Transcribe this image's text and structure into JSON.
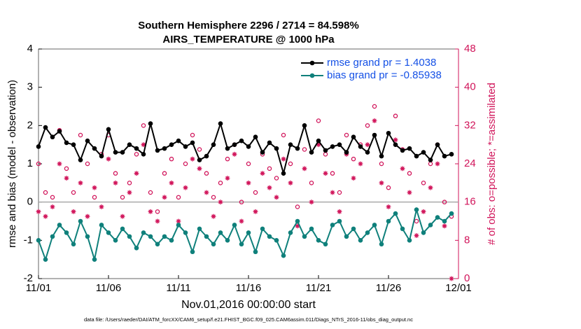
{
  "chart_data": {
    "type": "line",
    "title": "Southern Hemisphere 2296 / 2714 = 84.598%",
    "subtitle": "AIRS_TEMPERATURE @ 1000 hPa",
    "x_label": "Nov.01,2016 00:00:00 start",
    "y_label": "rmse and bias (model - observation)",
    "y2_label": "# of obs: o=possible; *=assimilated",
    "footnote": "data file: /Users/raeder/DAI/ATM_forcXX/CAM6_setup/f.e21.FHIST_BGC.f09_025.CAM6assim.011/Diags_NTrS_2016-11/obs_diag_output.nc",
    "x": [
      0,
      0.5,
      1,
      1.5,
      2,
      2.5,
      3,
      3.5,
      4,
      4.5,
      5,
      5.5,
      6,
      6.5,
      7,
      7.5,
      8,
      8.5,
      9,
      9.5,
      10,
      10.5,
      11,
      11.5,
      12,
      12.5,
      13,
      13.5,
      14,
      14.5,
      15,
      15.5,
      16,
      16.5,
      17,
      17.5,
      18,
      18.5,
      19,
      19.5,
      20,
      20.5,
      21,
      21.5,
      22,
      22.5,
      23,
      23.5,
      24,
      24.5,
      25,
      25.5,
      26,
      26.5,
      27,
      27.5,
      28,
      28.5,
      29,
      29.5
    ],
    "xlim": [
      0,
      30
    ],
    "xticks": [
      {
        "value": 0,
        "label": "11/01"
      },
      {
        "value": 5,
        "label": "11/06"
      },
      {
        "value": 10,
        "label": "11/11"
      },
      {
        "value": 15,
        "label": "11/16"
      },
      {
        "value": 20,
        "label": "11/21"
      },
      {
        "value": 25,
        "label": "11/26"
      },
      {
        "value": 30,
        "label": "12/01"
      }
    ],
    "ylim": [
      -2,
      4
    ],
    "yticks": [
      -2,
      -1,
      0,
      1,
      2,
      3,
      4
    ],
    "y2lim": [
      0,
      48
    ],
    "y2ticks": [
      0,
      8,
      16,
      24,
      32,
      40,
      48
    ],
    "zero_line": true,
    "legend": "upper right",
    "series": [
      {
        "name": "rmse grand pr = 1.4038",
        "color": "#000000",
        "marker": "dot",
        "values": [
          1.45,
          1.95,
          1.7,
          1.85,
          1.55,
          1.5,
          1.1,
          1.6,
          1.4,
          1.2,
          1.9,
          1.3,
          1.3,
          1.5,
          1.4,
          1.25,
          2.05,
          1.35,
          1.4,
          1.5,
          1.6,
          1.45,
          1.55,
          1.1,
          1.2,
          1.5,
          2.05,
          1.4,
          1.5,
          1.6,
          1.45,
          1.7,
          1.3,
          1.55,
          1.4,
          0.75,
          1.5,
          1.4,
          2.0,
          1.3,
          1.6,
          1.35,
          1.45,
          1.5,
          1.3,
          1.7,
          1.45,
          1.3,
          1.75,
          1.2,
          1.8,
          1.5,
          1.35,
          1.4,
          1.2,
          1.3,
          1.1,
          1.5,
          1.2,
          1.25
        ]
      },
      {
        "name": "bias grand pr = -0.85938",
        "color": "#0f807b",
        "marker": "dot",
        "values": [
          -1.0,
          -1.5,
          -0.9,
          -0.6,
          -0.8,
          -1.1,
          -0.5,
          -0.9,
          -1.5,
          -0.6,
          -0.8,
          -1.0,
          -0.7,
          -0.9,
          -1.2,
          -0.8,
          -0.9,
          -1.1,
          -0.9,
          -1.0,
          -0.6,
          -0.8,
          -1.3,
          -0.7,
          -0.9,
          -1.1,
          -0.8,
          -1.0,
          -0.6,
          -1.1,
          -0.8,
          -1.3,
          -0.7,
          -0.9,
          -1.0,
          -1.4,
          -0.8,
          -0.5,
          -0.9,
          -0.7,
          -1.0,
          -1.1,
          -0.6,
          -0.5,
          -0.9,
          -0.7,
          -1.0,
          -0.8,
          -0.6,
          -1.1,
          -0.5,
          -0.3,
          -0.7,
          -1.0,
          -0.2,
          -0.8,
          -0.6,
          -0.4,
          -0.5,
          -0.3
        ]
      },
      {
        "color": "#d1145a",
        "marker": "circle",
        "axis": "y2",
        "values": [
          24,
          18,
          17,
          31,
          23,
          18,
          30,
          24,
          17,
          26,
          30,
          22,
          17,
          20,
          26,
          32,
          18,
          14,
          22,
          25,
          17,
          24,
          30,
          27,
          22,
          17,
          20,
          25,
          28,
          16,
          24,
          18,
          26,
          23,
          21,
          30,
          24,
          15,
          27,
          20,
          33,
          26,
          22,
          18,
          30,
          25,
          28,
          32,
          36,
          24,
          19,
          34,
          27,
          22,
          12,
          20,
          24,
          28,
          16,
          13
        ]
      },
      {
        "color": "#d1145a",
        "marker": "asterisk",
        "axis": "y2",
        "values": [
          14,
          13,
          15,
          24,
          21,
          14,
          20,
          13,
          19,
          15,
          25,
          20,
          13,
          18,
          22,
          28,
          14,
          12,
          17,
          20,
          12,
          19,
          25,
          23,
          18,
          13,
          16,
          21,
          26,
          12,
          20,
          14,
          22,
          19,
          17,
          25,
          20,
          11,
          23,
          16,
          28,
          22,
          18,
          14,
          26,
          21,
          24,
          28,
          33,
          20,
          15,
          29,
          23,
          18,
          9,
          14,
          19,
          24,
          11,
          0
        ]
      }
    ]
  }
}
